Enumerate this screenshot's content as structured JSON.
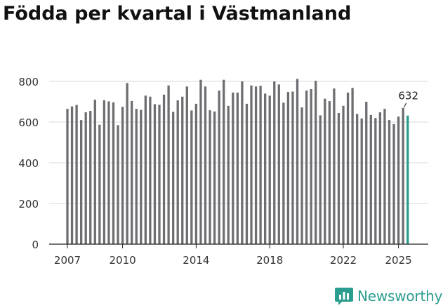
{
  "header": {
    "title": "Födda per kvartal i Västmanland"
  },
  "brand": {
    "name": "Newsworthy",
    "logo": "newsworthy-logo-icon"
  },
  "colors": {
    "bar": "#6e6e72",
    "highlight": "#2a9d8f",
    "grid": "#d9d9d9",
    "axis": "#222222",
    "text": "#333333"
  },
  "chart_data": {
    "type": "bar",
    "title": "Födda per kvartal i Västmanland",
    "xlabel": "",
    "ylabel": "",
    "ylim": [
      0,
      860
    ],
    "yticks": [
      0,
      200,
      400,
      600,
      800
    ],
    "grid": true,
    "start": {
      "year": 2007,
      "quarter": 1
    },
    "xtick_labels": [
      "2007",
      "2010",
      "2014",
      "2018",
      "2022",
      "2025"
    ],
    "values": [
      665,
      677,
      684,
      610,
      648,
      655,
      710,
      587,
      707,
      702,
      697,
      585,
      675,
      792,
      704,
      665,
      660,
      730,
      725,
      688,
      685,
      735,
      780,
      650,
      707,
      725,
      775,
      657,
      690,
      808,
      775,
      658,
      652,
      755,
      808,
      680,
      745,
      745,
      800,
      690,
      780,
      775,
      778,
      740,
      730,
      800,
      785,
      695,
      748,
      750,
      812,
      672,
      755,
      762,
      803,
      633,
      715,
      703,
      765,
      645,
      680,
      745,
      768,
      640,
      618,
      700,
      635,
      620,
      648,
      665,
      610,
      590,
      627,
      670,
      632
    ],
    "highlight_index": 74,
    "highlight_label": "632"
  }
}
